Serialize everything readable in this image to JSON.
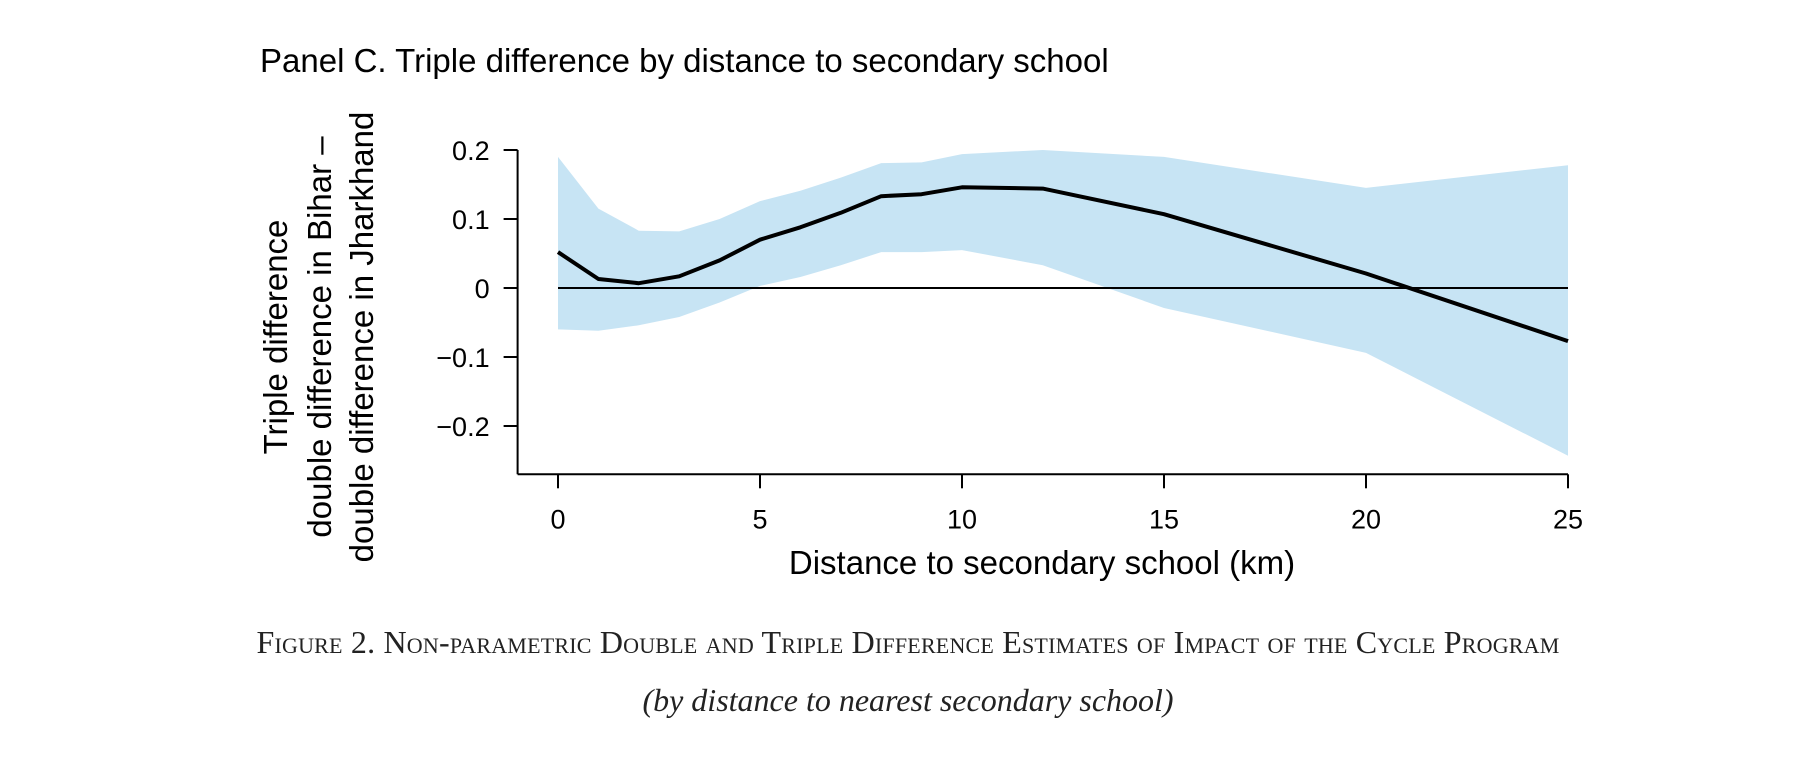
{
  "chart_data": {
    "type": "line",
    "title": "Panel C. Triple difference by distance to secondary school",
    "xlabel": "Distance to secondary school (km)",
    "ylabel": [
      "Triple difference",
      "double difference in Bihar –",
      "double difference in Jharkhand"
    ],
    "xlim": [
      -1,
      25
    ],
    "ylim": [
      -0.27,
      0.2
    ],
    "xticks": [
      0,
      5,
      10,
      15,
      20,
      25
    ],
    "xtick_labels": [
      "0",
      "5",
      "10",
      "15",
      "20",
      "25"
    ],
    "yticks": [
      0.2,
      0.1,
      0,
      -0.1,
      -0.2
    ],
    "ytick_labels": [
      "0.2",
      "0.1",
      "0",
      "−0.1",
      "−0.2"
    ],
    "grid": false,
    "reference_line": 0,
    "colors": {
      "line": "#000000",
      "band": "#c7e4f4",
      "reference": "#000000"
    },
    "series": [
      {
        "values_x": [
          0,
          1,
          2,
          3,
          4,
          5,
          6,
          7,
          8,
          9,
          10,
          12,
          15,
          20,
          25
        ],
        "values_y": [
          0.052,
          0.013,
          0.007,
          0.017,
          0.04,
          0.07,
          0.088,
          0.109,
          0.133,
          0.136,
          0.146,
          0.144,
          0.107,
          0.021,
          -0.077
        ],
        "ci_lower": [
          -0.06,
          -0.062,
          -0.054,
          -0.042,
          -0.021,
          0.003,
          0.016,
          0.033,
          0.052,
          0.052,
          0.055,
          0.033,
          -0.029,
          -0.094,
          -0.243
        ],
        "ci_upper": [
          0.19,
          0.115,
          0.083,
          0.082,
          0.1,
          0.126,
          0.141,
          0.16,
          0.181,
          0.182,
          0.194,
          0.2,
          0.19,
          0.145,
          0.178
        ]
      }
    ]
  },
  "caption": {
    "main": "Figure 2. Non-parametric Double and Triple Difference Estimates of Impact of the Cycle Program",
    "sub": "(by distance to nearest secondary school)"
  }
}
